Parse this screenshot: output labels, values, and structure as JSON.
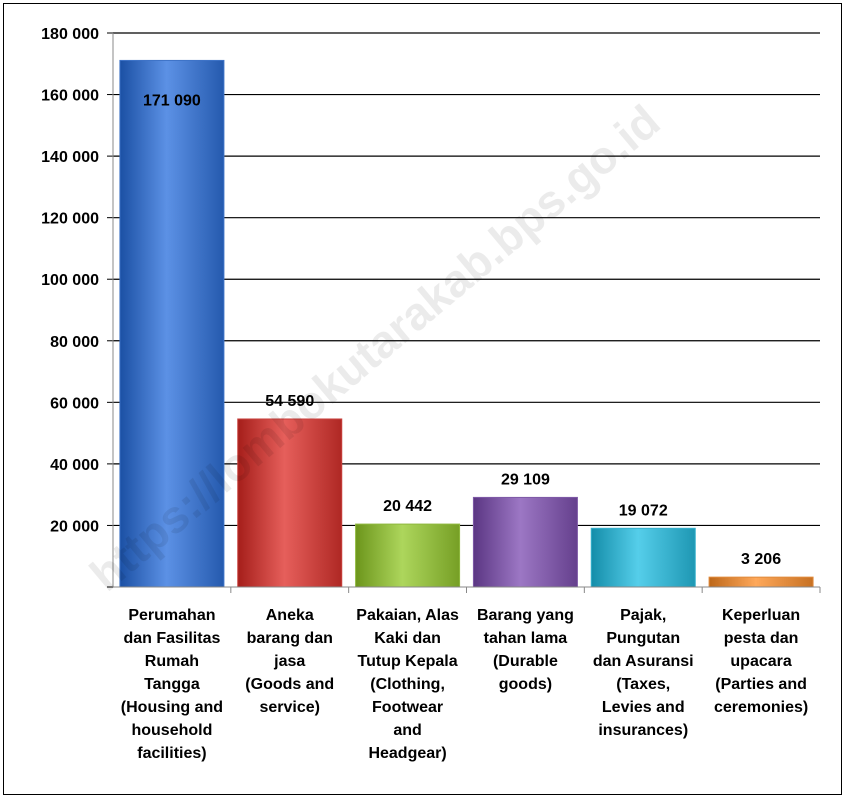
{
  "chart_data": {
    "type": "bar",
    "title": "",
    "xlabel": "",
    "ylabel": "",
    "ylim": [
      0,
      180000
    ],
    "yticks": [
      0,
      20000,
      40000,
      60000,
      80000,
      100000,
      120000,
      140000,
      160000,
      180000
    ],
    "ytick_labels": [
      "",
      "20 000",
      "40 000",
      "60 000",
      "80 000",
      "100 000",
      "120 000",
      "140 000",
      "160 000",
      "180 000"
    ],
    "grid": true,
    "categories": [
      "Perumahan dan Fasilitas Rumah Tangga (Housing and household facilities)",
      "Aneka barang dan jasa (Goods and service)",
      "Pakaian, Alas Kaki dan Tutup Kepala (Clothing, Footwear and Headgear)",
      "Barang yang tahan lama (Durable goods)",
      "Pajak, Pungutan dan Asuransi (Taxes, Levies and insurances)",
      "Keperluan pesta dan upacara (Parties and ceremonies)"
    ],
    "category_lines": [
      [
        "Perumahan",
        "dan Fasilitas",
        "Rumah",
        "Tangga",
        "(Housing and",
        "household",
        "facilities)"
      ],
      [
        "Aneka",
        "barang dan",
        "jasa",
        "(Goods and",
        "service)"
      ],
      [
        "Pakaian, Alas",
        "Kaki dan",
        "Tutup Kepala",
        "(Clothing,",
        "Footwear",
        "and",
        "Headgear)"
      ],
      [
        "Barang yang",
        "tahan lama",
        "(Durable",
        "goods)"
      ],
      [
        "Pajak,",
        "Pungutan",
        "dan Asuransi",
        "(Taxes,",
        "Levies and",
        "insurances)"
      ],
      [
        "Keperluan",
        "pesta dan",
        "upacara",
        "(Parties and",
        "ceremonies)"
      ]
    ],
    "values": [
      171090,
      54590,
      20442,
      29109,
      19072,
      3206
    ],
    "value_labels": [
      "171 090",
      "54 590",
      "20 442",
      "29 109",
      "19 072",
      "3 206"
    ],
    "colors": [
      "#3e73c7",
      "#c8413d",
      "#8fb83e",
      "#7e59a6",
      "#37b0cc",
      "#e08a3c"
    ]
  },
  "watermark": "https://lombokutarakab.bps.go.id"
}
